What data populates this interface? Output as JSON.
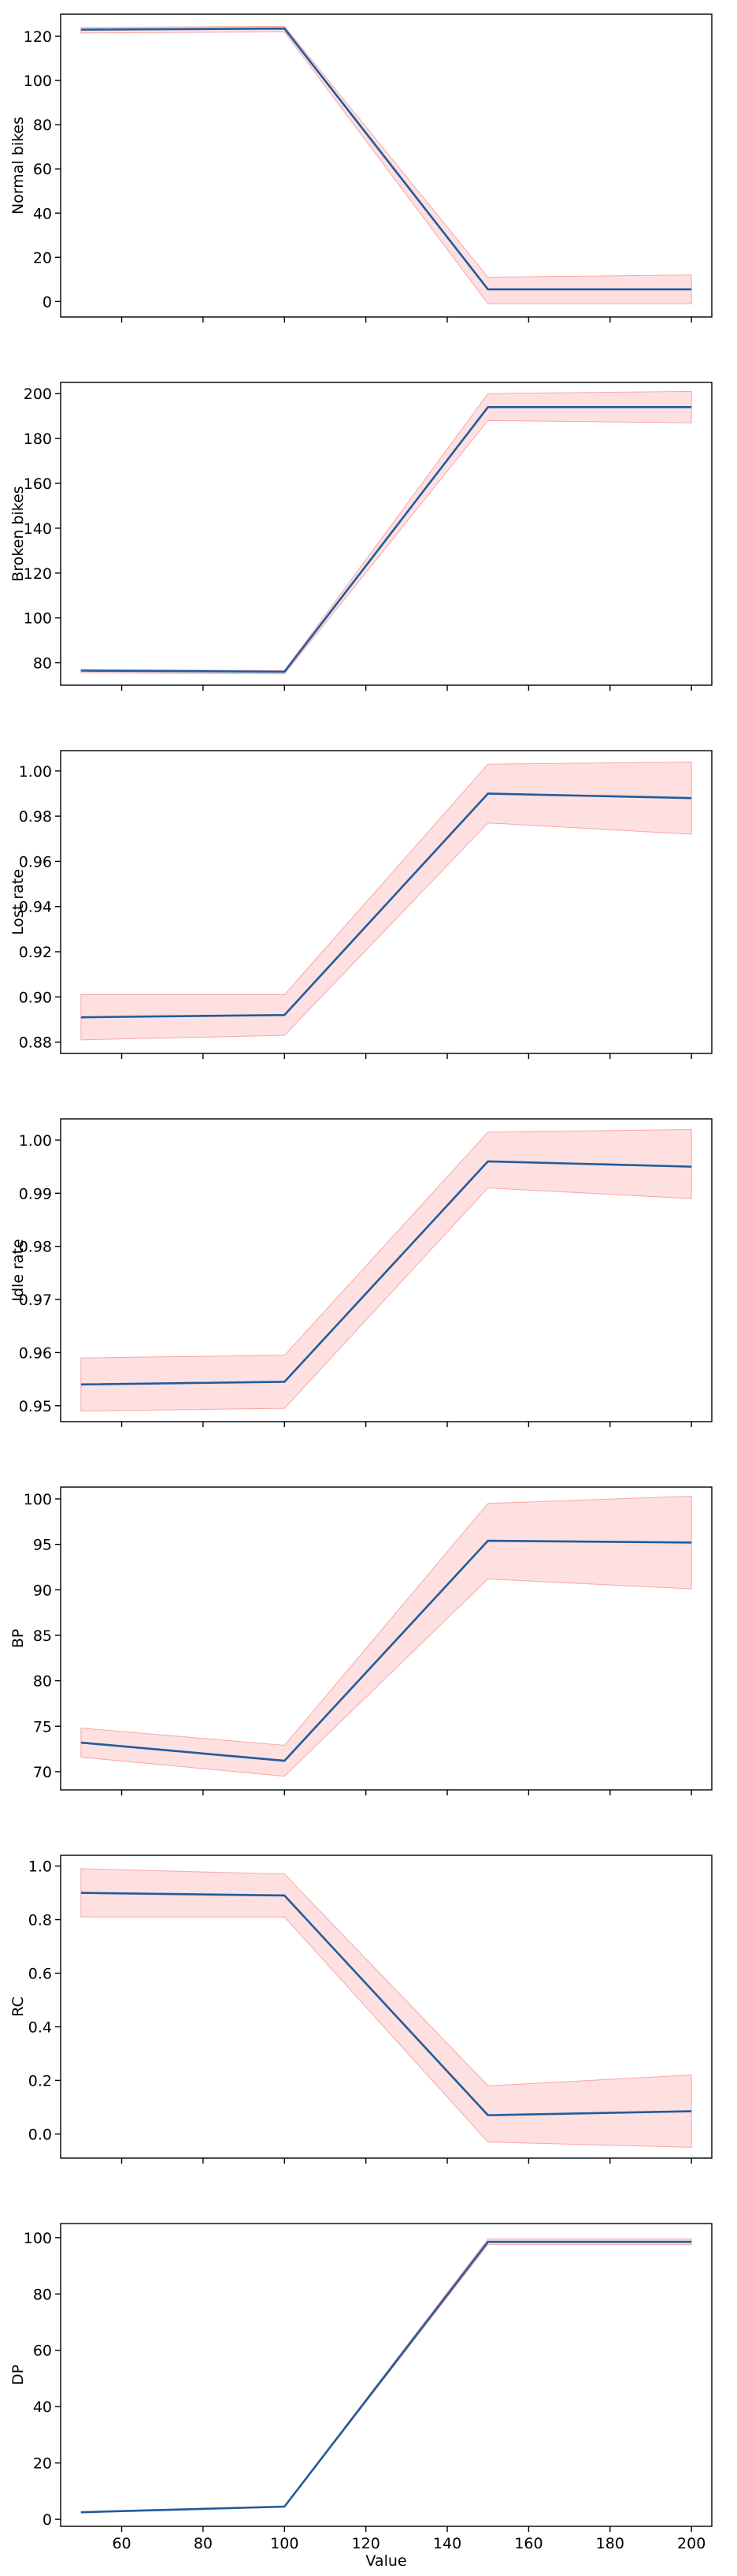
{
  "figure": {
    "xlabel": "Value",
    "x_ticks": [
      60,
      80,
      100,
      120,
      140,
      160,
      180,
      200
    ],
    "line_color": "#1f5c9e",
    "band_color": "#fdd5d5",
    "band_edge_color": "#f7a8a8"
  },
  "chart_data": [
    {
      "type": "line",
      "ylabel": "Normal bikes",
      "x": [
        50,
        100,
        150,
        200
      ],
      "y": [
        123,
        123.5,
        5.5,
        5.5
      ],
      "y_lower": [
        121.5,
        122,
        -1,
        -1
      ],
      "y_upper": [
        124,
        124.5,
        11,
        12
      ],
      "xlim": [
        45,
        205
      ],
      "ylim": [
        -7,
        130
      ],
      "y_ticks": [
        0,
        20,
        40,
        60,
        80,
        100,
        120
      ]
    },
    {
      "type": "line",
      "ylabel": "Broken bikes",
      "x": [
        50,
        100,
        150,
        200
      ],
      "y": [
        76.5,
        76,
        194,
        194
      ],
      "y_lower": [
        75.5,
        75,
        188,
        187
      ],
      "y_upper": [
        77,
        76.5,
        200,
        201
      ],
      "xlim": [
        45,
        205
      ],
      "ylim": [
        70,
        205
      ],
      "y_ticks": [
        80,
        100,
        120,
        140,
        160,
        180,
        200
      ]
    },
    {
      "type": "line",
      "ylabel": "Lost rate",
      "x": [
        50,
        100,
        150,
        200
      ],
      "y": [
        0.891,
        0.892,
        0.99,
        0.988
      ],
      "y_lower": [
        0.881,
        0.883,
        0.977,
        0.972
      ],
      "y_upper": [
        0.901,
        0.901,
        1.003,
        1.004
      ],
      "xlim": [
        45,
        205
      ],
      "ylim": [
        0.875,
        1.009
      ],
      "y_ticks": [
        0.88,
        0.9,
        0.92,
        0.94,
        0.96,
        0.98,
        1.0
      ],
      "tick_labels": [
        "0.88",
        "0.90",
        "0.92",
        "0.94",
        "0.96",
        "0.98",
        "1.00"
      ]
    },
    {
      "type": "line",
      "ylabel": "Idle rate",
      "x": [
        50,
        100,
        150,
        200
      ],
      "y": [
        0.954,
        0.9545,
        0.996,
        0.995
      ],
      "y_lower": [
        0.949,
        0.9495,
        0.991,
        0.989
      ],
      "y_upper": [
        0.959,
        0.9595,
        1.0015,
        1.002
      ],
      "xlim": [
        45,
        205
      ],
      "ylim": [
        0.947,
        1.004
      ],
      "y_ticks": [
        0.95,
        0.96,
        0.97,
        0.98,
        0.99,
        1.0
      ],
      "tick_labels": [
        "0.95",
        "0.96",
        "0.97",
        "0.98",
        "0.99",
        "1.00"
      ]
    },
    {
      "type": "line",
      "ylabel": "BP",
      "x": [
        50,
        100,
        150,
        200
      ],
      "y": [
        73.2,
        71.2,
        95.4,
        95.2
      ],
      "y_lower": [
        71.6,
        69.5,
        91.2,
        90.1
      ],
      "y_upper": [
        74.8,
        72.9,
        99.5,
        100.3
      ],
      "xlim": [
        45,
        205
      ],
      "ylim": [
        68,
        101.3
      ],
      "y_ticks": [
        70,
        75,
        80,
        85,
        90,
        95,
        100
      ]
    },
    {
      "type": "line",
      "ylabel": "RC",
      "x": [
        50,
        100,
        150,
        200
      ],
      "y": [
        0.9,
        0.89,
        0.07,
        0.085
      ],
      "y_lower": [
        0.81,
        0.81,
        -0.03,
        -0.05
      ],
      "y_upper": [
        0.99,
        0.97,
        0.18,
        0.22
      ],
      "xlim": [
        45,
        205
      ],
      "ylim": [
        -0.09,
        1.04
      ],
      "y_ticks": [
        0.0,
        0.2,
        0.4,
        0.6,
        0.8,
        1.0
      ],
      "tick_labels": [
        "0.0",
        "0.2",
        "0.4",
        "0.6",
        "0.8",
        "1.0"
      ]
    },
    {
      "type": "line",
      "ylabel": "DP",
      "x": [
        50,
        100,
        150,
        200
      ],
      "y": [
        2.5,
        4.5,
        98.5,
        98.5
      ],
      "y_lower": [
        2.3,
        4.3,
        97.5,
        97.5
      ],
      "y_upper": [
        2.7,
        4.7,
        99.5,
        99.5
      ],
      "xlim": [
        45,
        205
      ],
      "ylim": [
        -2.5,
        105
      ],
      "y_ticks": [
        0,
        20,
        40,
        60,
        80,
        100
      ]
    }
  ]
}
